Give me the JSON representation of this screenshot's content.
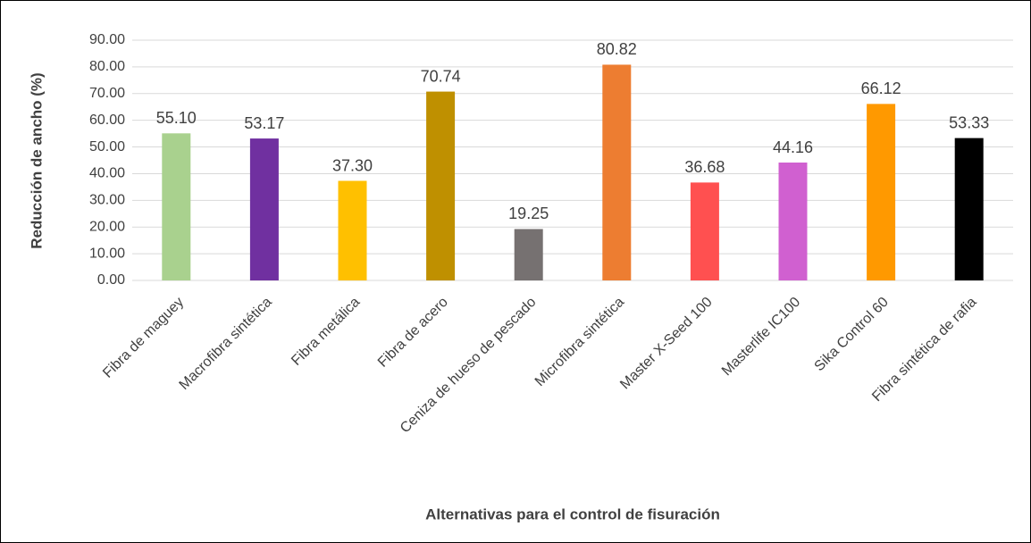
{
  "chart_data": {
    "type": "bar",
    "x_label": "Alternativas para el control de fisuración",
    "y_label": "Reducción de ancho (%)",
    "categories": [
      "Fibra de maguey",
      "Macrofibra sintética",
      "Fibra metálica",
      "Fibra de acero",
      "Ceniza de hueso de pescado",
      "Microfibra sintética",
      "Master X-Seed 100",
      "Masterlife IC100",
      "Sika Control 60",
      "Fibra sintética de rafia"
    ],
    "values": [
      55.1,
      53.17,
      37.3,
      70.74,
      19.25,
      80.82,
      36.68,
      44.16,
      66.12,
      53.33
    ],
    "value_labels": [
      "55.10",
      "53.17",
      "37.30",
      "70.74",
      "19.25",
      "80.82",
      "36.68",
      "44.16",
      "66.12",
      "53.33"
    ],
    "colors": [
      "#a9d18e",
      "#7030a0",
      "#ffc000",
      "#bf9000",
      "#767171",
      "#ed7d31",
      "#ff5050",
      "#d060d0",
      "#ff9900",
      "#000000"
    ],
    "ylim": [
      0,
      90
    ],
    "yticks": [
      {
        "value": 0,
        "label": "0.00"
      },
      {
        "value": 10,
        "label": "10.00"
      },
      {
        "value": 20,
        "label": "20.00"
      },
      {
        "value": 30,
        "label": "30.00"
      },
      {
        "value": 40,
        "label": "40.00"
      },
      {
        "value": 50,
        "label": "50.00"
      },
      {
        "value": 60,
        "label": "60.00"
      },
      {
        "value": 70,
        "label": "70.00"
      },
      {
        "value": 80,
        "label": "80.00"
      },
      {
        "value": 90,
        "label": "90.00"
      }
    ],
    "grid": true
  }
}
